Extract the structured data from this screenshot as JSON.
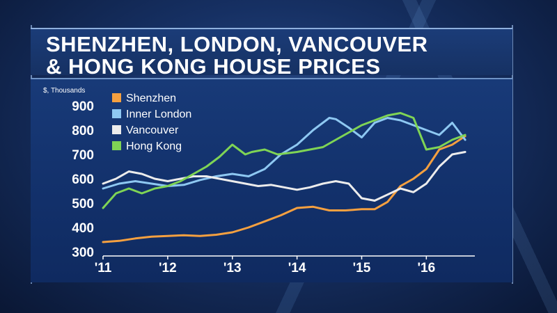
{
  "title_line1": "SHENZHEN, LONDON, VANCOUVER",
  "title_line2": "& HONG KONG HOUSE PRICES",
  "chart_data": {
    "type": "line",
    "ylabel": "$, Thousands",
    "ylim": [
      300,
      900
    ],
    "yticks": [
      900,
      800,
      700,
      600,
      500,
      400,
      300
    ],
    "xlim": [
      2011,
      2016.75
    ],
    "xticks": [
      {
        "value": 2011,
        "label": "'11"
      },
      {
        "value": 2012,
        "label": "'12"
      },
      {
        "value": 2013,
        "label": "'13"
      },
      {
        "value": 2014,
        "label": "'14"
      },
      {
        "value": 2015,
        "label": "'15"
      },
      {
        "value": 2016,
        "label": "'16"
      }
    ],
    "legend_position": "top-left",
    "series": [
      {
        "name": "Shenzhen",
        "color": "#f5a040",
        "x": [
          2011.0,
          2011.25,
          2011.5,
          2011.75,
          2012.0,
          2012.25,
          2012.5,
          2012.75,
          2013.0,
          2013.25,
          2013.5,
          2013.75,
          2014.0,
          2014.25,
          2014.5,
          2014.75,
          2015.0,
          2015.2,
          2015.4,
          2015.6,
          2015.8,
          2016.0,
          2016.2,
          2016.4,
          2016.6
        ],
        "values": [
          340,
          345,
          355,
          362,
          365,
          368,
          365,
          370,
          380,
          400,
          425,
          450,
          480,
          485,
          470,
          470,
          475,
          475,
          505,
          570,
          600,
          640,
          720,
          740,
          775
        ]
      },
      {
        "name": "Inner London",
        "color": "#8ec8f2",
        "x": [
          2011.0,
          2011.25,
          2011.5,
          2011.75,
          2012.0,
          2012.25,
          2012.5,
          2012.75,
          2013.0,
          2013.25,
          2013.5,
          2013.75,
          2014.0,
          2014.25,
          2014.5,
          2014.6,
          2014.8,
          2015.0,
          2015.2,
          2015.4,
          2015.6,
          2015.8,
          2016.0,
          2016.2,
          2016.4,
          2016.6
        ],
        "values": [
          560,
          580,
          590,
          580,
          570,
          575,
          595,
          610,
          620,
          610,
          640,
          700,
          740,
          800,
          850,
          845,
          810,
          770,
          830,
          850,
          840,
          820,
          800,
          780,
          830,
          760
        ]
      },
      {
        "name": "Vancouver",
        "color": "#ececec",
        "x": [
          2011.0,
          2011.2,
          2011.4,
          2011.6,
          2011.8,
          2012.0,
          2012.2,
          2012.4,
          2012.6,
          2012.8,
          2013.0,
          2013.2,
          2013.4,
          2013.6,
          2013.8,
          2014.0,
          2014.2,
          2014.4,
          2014.6,
          2014.8,
          2015.0,
          2015.2,
          2015.4,
          2015.6,
          2015.8,
          2016.0,
          2016.2,
          2016.4,
          2016.6
        ],
        "values": [
          580,
          600,
          630,
          620,
          600,
          590,
          600,
          610,
          610,
          600,
          590,
          580,
          570,
          575,
          565,
          555,
          565,
          580,
          590,
          580,
          520,
          510,
          535,
          560,
          545,
          580,
          650,
          700,
          710
        ]
      },
      {
        "name": "Hong Kong",
        "color": "#7fd455",
        "x": [
          2011.0,
          2011.2,
          2011.4,
          2011.6,
          2011.8,
          2012.0,
          2012.2,
          2012.4,
          2012.6,
          2012.8,
          2013.0,
          2013.1,
          2013.2,
          2013.3,
          2013.5,
          2013.7,
          2014.0,
          2014.2,
          2014.4,
          2014.6,
          2014.8,
          2015.0,
          2015.2,
          2015.4,
          2015.6,
          2015.8,
          2016.0,
          2016.2,
          2016.4,
          2016.6
        ],
        "values": [
          480,
          540,
          560,
          540,
          560,
          570,
          590,
          620,
          650,
          690,
          740,
          720,
          700,
          710,
          720,
          700,
          710,
          720,
          730,
          760,
          790,
          820,
          840,
          860,
          870,
          850,
          720,
          730,
          760,
          780
        ]
      }
    ]
  }
}
